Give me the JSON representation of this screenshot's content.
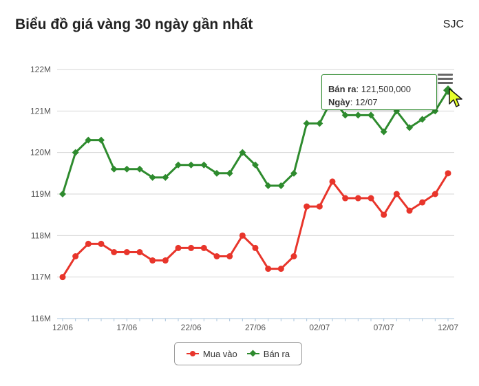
{
  "page": {
    "title": "Biểu đồ giá vàng 30 ngày gần nhất",
    "brand": "SJC"
  },
  "tooltip": {
    "line1_label": "Bán ra",
    "line1_value": ": 121,500,000",
    "line2_label": "Ngày",
    "line2_value": ": 12/07"
  },
  "icons": {
    "menu": "hamburger-menu-icon",
    "cursor": "pointer-cursor-icon"
  },
  "chart_data": {
    "type": "line",
    "title": "Biểu đồ giá vàng 30 ngày gần nhất",
    "xlabel": "",
    "ylabel": "",
    "x": [
      "12/06",
      "13/06",
      "14/06",
      "15/06",
      "16/06",
      "17/06",
      "18/06",
      "19/06",
      "20/06",
      "21/06",
      "22/06",
      "23/06",
      "24/06",
      "25/06",
      "26/06",
      "27/06",
      "28/06",
      "29/06",
      "30/06",
      "01/07",
      "02/07",
      "03/07",
      "04/07",
      "05/07",
      "06/07",
      "07/07",
      "08/07",
      "09/07",
      "10/07",
      "11/07",
      "12/07"
    ],
    "x_tick_labels": [
      "12/06",
      "17/06",
      "22/06",
      "27/06",
      "02/07",
      "07/07",
      "12/07"
    ],
    "x_tick_indices": [
      0,
      5,
      10,
      15,
      20,
      25,
      30
    ],
    "y_tick_values": [
      116,
      117,
      118,
      119,
      120,
      121,
      122
    ],
    "y_tick_labels": [
      "116M",
      "117M",
      "118M",
      "119M",
      "120M",
      "121M",
      "122M"
    ],
    "ylim": [
      116,
      122
    ],
    "y_unit": "M",
    "grid": true,
    "legend_position": "bottom-center",
    "series": [
      {
        "name": "Mua vào",
        "color": "#e8352b",
        "marker": "circle",
        "values": [
          117.0,
          117.5,
          117.8,
          117.8,
          117.6,
          117.6,
          117.6,
          117.4,
          117.4,
          117.7,
          117.7,
          117.7,
          117.5,
          117.5,
          118.0,
          117.7,
          117.2,
          117.2,
          117.5,
          118.7,
          118.7,
          119.3,
          118.9,
          118.9,
          118.9,
          118.5,
          119.0,
          118.6,
          118.8,
          119.0,
          119.5
        ]
      },
      {
        "name": "Bán ra",
        "color": "#2e8b2e",
        "marker": "diamond",
        "values": [
          119.0,
          120.0,
          120.3,
          120.3,
          119.6,
          119.6,
          119.6,
          119.4,
          119.4,
          119.7,
          119.7,
          119.7,
          119.5,
          119.5,
          120.0,
          119.7,
          119.2,
          119.2,
          119.5,
          120.7,
          120.7,
          121.3,
          120.9,
          120.9,
          120.9,
          120.5,
          121.0,
          120.6,
          120.8,
          121.0,
          121.5
        ]
      }
    ]
  }
}
